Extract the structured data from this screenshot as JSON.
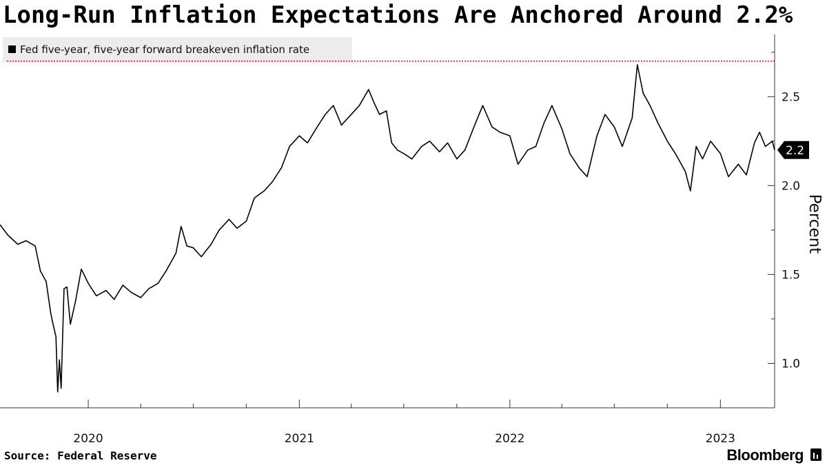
{
  "title": "Long-Run Inflation Expectations Are Anchored Around 2.2%",
  "footer": {
    "source": "Source: Federal Reserve",
    "brand": "Bloomberg"
  },
  "icons": {
    "brand": "bloomberg-bars-icon",
    "legend": "legend-square-icon"
  },
  "colors": {
    "line": "#000000",
    "reference_line": "#e8384f",
    "legend_bg": "#ececec",
    "axis": "#333333"
  },
  "chart_data": {
    "type": "line",
    "title": "Long-Run Inflation Expectations Are Anchored Around 2.2%",
    "xlabel": "",
    "ylabel": "Percent",
    "ylim": [
      0.75,
      2.85
    ],
    "xlim": [
      "2019-08-01",
      "2023-04-05"
    ],
    "y_ticks": [
      1.0,
      1.5,
      2.0,
      2.5
    ],
    "y_tick_labels": [
      "1.0",
      "1.5",
      "2.0",
      "2.5"
    ],
    "x_tick_labels": [
      "2020",
      "2021",
      "2022",
      "2023"
    ],
    "x_tick_dates": [
      "2020-01-01",
      "2021-01-01",
      "2022-01-01",
      "2023-01-01"
    ],
    "minor_ticks": [
      "2020-04-01",
      "2020-07-01",
      "2020-10-01",
      "2021-04-01",
      "2021-07-01",
      "2021-10-01",
      "2022-04-01",
      "2022-07-01",
      "2022-10-01"
    ],
    "grid": false,
    "legend_position": "top-left",
    "reference_line": {
      "value": 2.7,
      "style": "dotted"
    },
    "last_value_label": "2.2",
    "series": [
      {
        "name": "Fed five-year, five-year forward breakeven inflation rate",
        "points": [
          [
            "2019-08-01",
            1.78
          ],
          [
            "2019-08-15",
            1.72
          ],
          [
            "2019-09-01",
            1.67
          ],
          [
            "2019-09-15",
            1.69
          ],
          [
            "2019-10-01",
            1.66
          ],
          [
            "2019-10-10",
            1.52
          ],
          [
            "2019-10-20",
            1.46
          ],
          [
            "2019-10-28",
            1.28
          ],
          [
            "2019-11-01",
            1.22
          ],
          [
            "2019-11-06",
            1.15
          ],
          [
            "2019-11-09",
            0.84
          ],
          [
            "2019-11-12",
            1.02
          ],
          [
            "2019-11-15",
            0.86
          ],
          [
            "2019-11-20",
            1.42
          ],
          [
            "2019-11-25",
            1.43
          ],
          [
            "2019-12-01",
            1.22
          ],
          [
            "2019-12-10",
            1.35
          ],
          [
            "2019-12-20",
            1.53
          ],
          [
            "2020-01-01",
            1.45
          ],
          [
            "2020-01-15",
            1.38
          ],
          [
            "2020-02-01",
            1.41
          ],
          [
            "2020-02-15",
            1.36
          ],
          [
            "2020-03-01",
            1.44
          ],
          [
            "2020-03-15",
            1.4
          ],
          [
            "2020-04-01",
            1.37
          ],
          [
            "2020-04-15",
            1.42
          ],
          [
            "2020-05-01",
            1.45
          ],
          [
            "2020-05-15",
            1.52
          ],
          [
            "2020-06-01",
            1.62
          ],
          [
            "2020-06-10",
            1.77
          ],
          [
            "2020-06-20",
            1.66
          ],
          [
            "2020-07-01",
            1.65
          ],
          [
            "2020-07-15",
            1.6
          ],
          [
            "2020-08-01",
            1.67
          ],
          [
            "2020-08-15",
            1.75
          ],
          [
            "2020-09-01",
            1.81
          ],
          [
            "2020-09-15",
            1.76
          ],
          [
            "2020-10-01",
            1.8
          ],
          [
            "2020-10-15",
            1.93
          ],
          [
            "2020-11-01",
            1.97
          ],
          [
            "2020-11-15",
            2.02
          ],
          [
            "2020-12-01",
            2.1
          ],
          [
            "2020-12-15",
            2.22
          ],
          [
            "2021-01-01",
            2.28
          ],
          [
            "2021-01-15",
            2.24
          ],
          [
            "2021-02-01",
            2.33
          ],
          [
            "2021-02-15",
            2.4
          ],
          [
            "2021-03-01",
            2.45
          ],
          [
            "2021-03-15",
            2.34
          ],
          [
            "2021-04-01",
            2.4
          ],
          [
            "2021-04-15",
            2.45
          ],
          [
            "2021-05-01",
            2.54
          ],
          [
            "2021-05-10",
            2.47
          ],
          [
            "2021-05-20",
            2.4
          ],
          [
            "2021-06-01",
            2.42
          ],
          [
            "2021-06-10",
            2.24
          ],
          [
            "2021-06-20",
            2.2
          ],
          [
            "2021-07-01",
            2.18
          ],
          [
            "2021-07-15",
            2.15
          ],
          [
            "2021-08-01",
            2.22
          ],
          [
            "2021-08-15",
            2.25
          ],
          [
            "2021-09-01",
            2.19
          ],
          [
            "2021-09-15",
            2.24
          ],
          [
            "2021-10-01",
            2.15
          ],
          [
            "2021-10-15",
            2.2
          ],
          [
            "2021-11-01",
            2.34
          ],
          [
            "2021-11-15",
            2.45
          ],
          [
            "2021-12-01",
            2.33
          ],
          [
            "2021-12-15",
            2.3
          ],
          [
            "2022-01-01",
            2.28
          ],
          [
            "2022-01-15",
            2.12
          ],
          [
            "2022-02-01",
            2.2
          ],
          [
            "2022-02-15",
            2.22
          ],
          [
            "2022-03-01",
            2.35
          ],
          [
            "2022-03-15",
            2.45
          ],
          [
            "2022-04-01",
            2.32
          ],
          [
            "2022-04-15",
            2.18
          ],
          [
            "2022-05-01",
            2.1
          ],
          [
            "2022-05-15",
            2.05
          ],
          [
            "2022-06-01",
            2.28
          ],
          [
            "2022-06-15",
            2.4
          ],
          [
            "2022-07-01",
            2.33
          ],
          [
            "2022-07-15",
            2.22
          ],
          [
            "2022-08-01",
            2.38
          ],
          [
            "2022-08-10",
            2.68
          ],
          [
            "2022-08-20",
            2.52
          ],
          [
            "2022-09-01",
            2.45
          ],
          [
            "2022-09-15",
            2.35
          ],
          [
            "2022-10-01",
            2.25
          ],
          [
            "2022-10-15",
            2.18
          ],
          [
            "2022-11-01",
            2.08
          ],
          [
            "2022-11-10",
            1.97
          ],
          [
            "2022-11-20",
            2.22
          ],
          [
            "2022-12-01",
            2.15
          ],
          [
            "2022-12-15",
            2.25
          ],
          [
            "2023-01-01",
            2.18
          ],
          [
            "2023-01-15",
            2.05
          ],
          [
            "2023-02-01",
            2.12
          ],
          [
            "2023-02-15",
            2.06
          ],
          [
            "2023-03-01",
            2.24
          ],
          [
            "2023-03-10",
            2.3
          ],
          [
            "2023-03-20",
            2.22
          ],
          [
            "2023-04-01",
            2.25
          ],
          [
            "2023-04-05",
            2.2
          ]
        ]
      }
    ]
  }
}
